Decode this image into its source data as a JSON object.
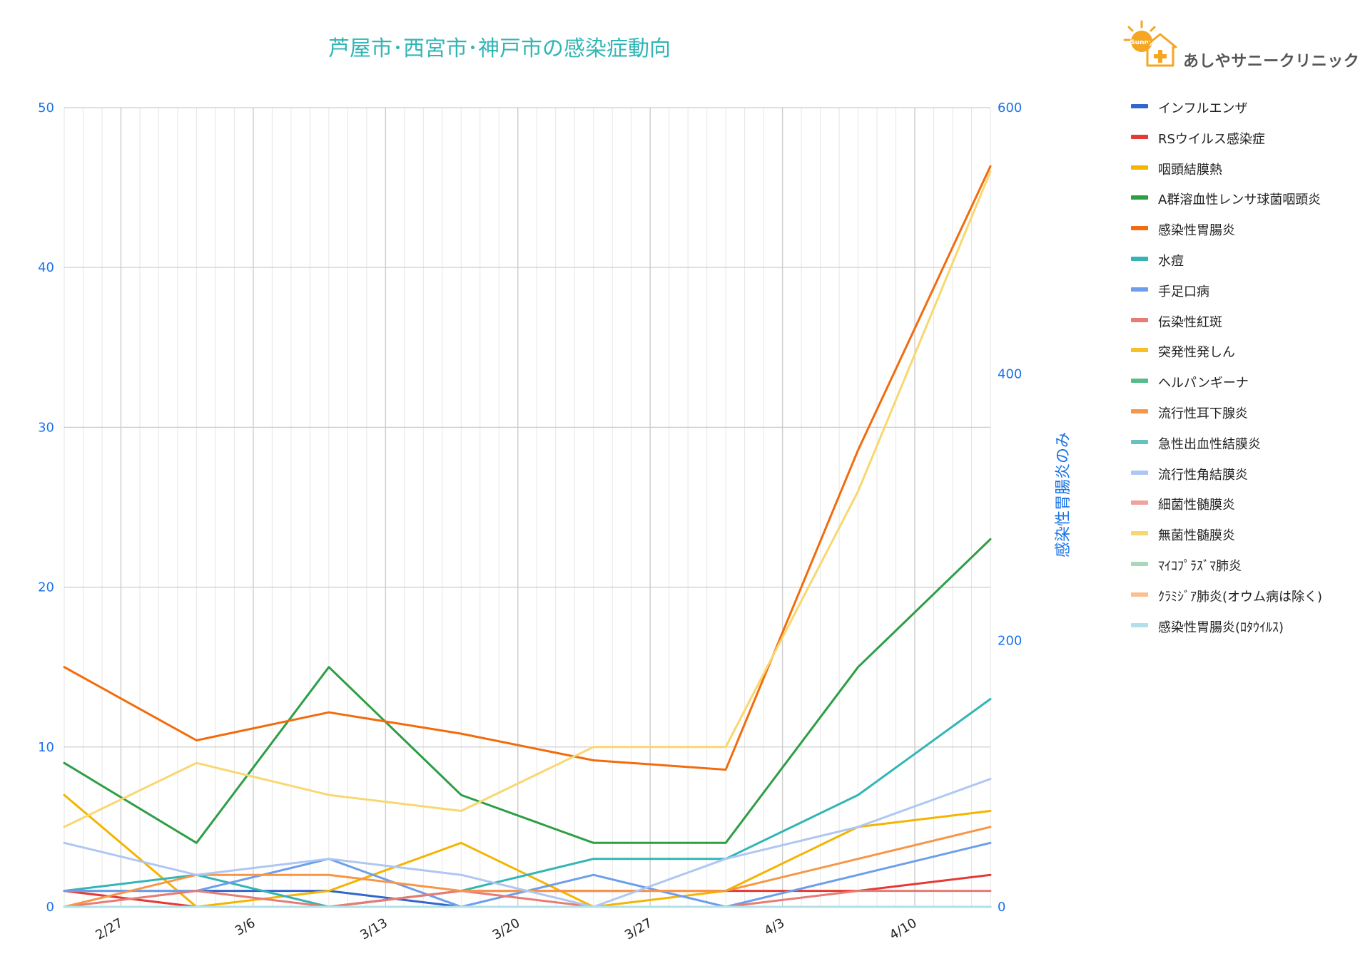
{
  "chart_data": {
    "type": "line",
    "title": "芦屋市･西宮市･神戸市の感染症動向",
    "xlabel": "",
    "ylabel": "",
    "y2label": "感染性胃腸炎のみ",
    "x_tick_labels": [
      "2/27",
      "3/6",
      "3/13",
      "3/20",
      "3/27",
      "4/3",
      "4/10"
    ],
    "x_dates": [
      "2/24",
      "3/3",
      "3/10",
      "3/17",
      "3/24",
      "3/31",
      "4/7",
      "4/14"
    ],
    "ylim": [
      0,
      50
    ],
    "y_ticks": [
      0,
      10,
      20,
      30,
      40,
      50
    ],
    "y2lim": [
      0,
      600
    ],
    "y2_ticks": [
      0,
      200,
      400,
      600
    ],
    "grid": true,
    "legend_position": "right",
    "series": [
      {
        "name": "インフルエンザ",
        "color": "#3366cc",
        "axis": "left",
        "values": [
          1,
          1,
          1,
          0,
          0,
          0,
          0,
          0
        ]
      },
      {
        "name": "RSウイルス感染症",
        "color": "#e53935",
        "axis": "left",
        "values": [
          1,
          0,
          0,
          1,
          1,
          1,
          1,
          2
        ]
      },
      {
        "name": "咽頭結膜熱",
        "color": "#f4b400",
        "axis": "left",
        "values": [
          7,
          0,
          1,
          4,
          0,
          1,
          5,
          6
        ]
      },
      {
        "name": "A群溶血性レンサ球菌咽頭炎",
        "color": "#2e9e45",
        "axis": "left",
        "values": [
          9,
          4,
          15,
          7,
          4,
          4,
          15,
          23
        ]
      },
      {
        "name": "感染性胃腸炎",
        "color": "#f26b0c",
        "axis": "right",
        "values": [
          180,
          125,
          146,
          130,
          110,
          103,
          343,
          556
        ]
      },
      {
        "name": "水痘",
        "color": "#33b5b5",
        "axis": "left",
        "values": [
          1,
          2,
          0,
          1,
          3,
          3,
          7,
          13
        ]
      },
      {
        "name": "手足口病",
        "color": "#6d9eeb",
        "axis": "left",
        "values": [
          1,
          1,
          3,
          0,
          2,
          0,
          2,
          4
        ]
      },
      {
        "name": "伝染性紅斑",
        "color": "#e67c73",
        "axis": "left",
        "values": [
          0,
          1,
          0,
          1,
          0,
          0,
          1,
          1
        ]
      },
      {
        "name": "突発性発しん",
        "color": "#f6c026",
        "axis": "left",
        "values": [
          0,
          0,
          0,
          0,
          0,
          0,
          0,
          0
        ]
      },
      {
        "name": "ヘルパンギーナ",
        "color": "#57bb8a",
        "axis": "left",
        "values": [
          0,
          0,
          0,
          0,
          0,
          0,
          0,
          0
        ]
      },
      {
        "name": "流行性耳下腺炎",
        "color": "#f79646",
        "axis": "left",
        "values": [
          0,
          2,
          2,
          1,
          1,
          1,
          3,
          5
        ]
      },
      {
        "name": "急性出血性結膜炎",
        "color": "#66c2c2",
        "axis": "left",
        "values": [
          0,
          0,
          0,
          0,
          0,
          0,
          0,
          0
        ]
      },
      {
        "name": "流行性角結膜炎",
        "color": "#aec7f2",
        "axis": "left",
        "values": [
          4,
          2,
          3,
          2,
          0,
          3,
          5,
          8
        ]
      },
      {
        "name": "細菌性髄膜炎",
        "color": "#f2a29b",
        "axis": "left",
        "values": [
          0,
          0,
          0,
          0,
          0,
          0,
          0,
          0
        ]
      },
      {
        "name": "無菌性髄膜炎",
        "color": "#f9d770",
        "axis": "left",
        "values": [
          5,
          9,
          7,
          6,
          10,
          10,
          26,
          46
        ]
      },
      {
        "name": "ﾏｲｺﾌﾟﾗｽﾞﾏ肺炎",
        "color": "#a8d8b9",
        "axis": "left",
        "values": [
          0,
          0,
          0,
          0,
          0,
          0,
          0,
          0
        ]
      },
      {
        "name": "ｸﾗﾐｼﾞｱ肺炎(オウム病は除く)",
        "color": "#fbc08f",
        "axis": "left",
        "values": [
          0,
          0,
          0,
          0,
          0,
          0,
          0,
          0
        ]
      },
      {
        "name": "感染性胃腸炎(ﾛﾀｳｲﾙｽ)",
        "color": "#b3e0e6",
        "axis": "left",
        "values": [
          0,
          0,
          0,
          0,
          0,
          0,
          0,
          0
        ]
      }
    ]
  },
  "logo": {
    "text": "あしやサニークリニック",
    "badge": "Sunny",
    "colors": {
      "sun": "#f5a623",
      "house": "#f5a623",
      "cross": "#f5a623"
    }
  },
  "colors": {
    "title": "#33b5b5",
    "axis_tick": "#1a73e8",
    "grid_major": "#cccccc",
    "grid_minor": "#e6e6e6"
  }
}
